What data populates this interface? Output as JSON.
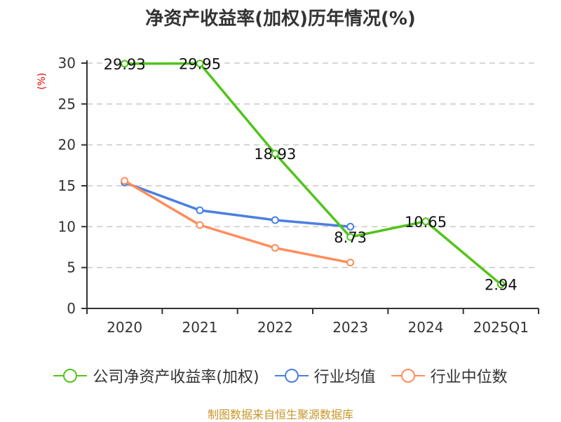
{
  "chart_data": {
    "type": "line",
    "title": "净资产收益率(加权)历年情况(%)",
    "ylabel": "(%)",
    "xlabel": "",
    "categories": [
      "2020",
      "2021",
      "2022",
      "2023",
      "2024",
      "2025Q1"
    ],
    "ylim": [
      0,
      30
    ],
    "yticks": [
      0,
      5,
      10,
      15,
      20,
      25,
      30
    ],
    "grid": true,
    "legend_position": "bottom",
    "series": [
      {
        "name": "公司净资产收益率(加权)",
        "color": "#52c41a",
        "values": [
          29.93,
          29.95,
          18.93,
          8.73,
          10.65,
          2.94
        ],
        "labels": [
          "29.93",
          "29.95",
          "18.93",
          "8.73",
          "10.65",
          "2.94"
        ]
      },
      {
        "name": "行业均值",
        "color": "#4a7fe0",
        "values": [
          15.4,
          12.0,
          10.8,
          10.0,
          null,
          null
        ]
      },
      {
        "name": "行业中位数",
        "color": "#ff8c5a",
        "values": [
          15.6,
          10.2,
          7.4,
          5.6,
          null,
          null
        ]
      }
    ]
  },
  "footer": "制图数据来自恒生聚源数据库"
}
